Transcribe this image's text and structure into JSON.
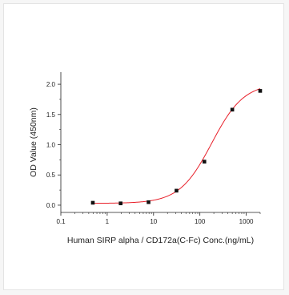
{
  "chart_data": {
    "type": "scatter",
    "title": "",
    "xlabel": "Human SIRP alpha / CD172a(C-Fc) Conc.(ng/mL)",
    "ylabel": "OD Value (450nm)",
    "xscale": "log",
    "xlim": [
      0.1,
      2000
    ],
    "ylim": [
      -0.12,
      2.2
    ],
    "x_ticks": [
      0.1,
      1,
      10,
      100,
      1000
    ],
    "x_tick_labels": [
      "0.1",
      "1",
      "10",
      "100",
      "1000"
    ],
    "y_ticks": [
      0.0,
      0.5,
      1.0,
      1.5,
      2.0
    ],
    "y_tick_labels": [
      "0.0",
      "0.5",
      "1.0",
      "1.5",
      "2.0"
    ],
    "grid": false,
    "legend": "none",
    "series": [
      {
        "x": [
          0.49,
          1.95,
          7.8,
          31.25,
          125,
          500,
          2000
        ],
        "y": [
          0.04,
          0.03,
          0.05,
          0.24,
          0.72,
          1.58,
          1.89
        ],
        "marker": "square",
        "color": "#111111"
      }
    ],
    "fit_curve": {
      "model": "4PL",
      "color": "#e8202a",
      "bottom": 0.03,
      "top": 2.02,
      "ec50": 180,
      "hill": 1.25
    }
  }
}
